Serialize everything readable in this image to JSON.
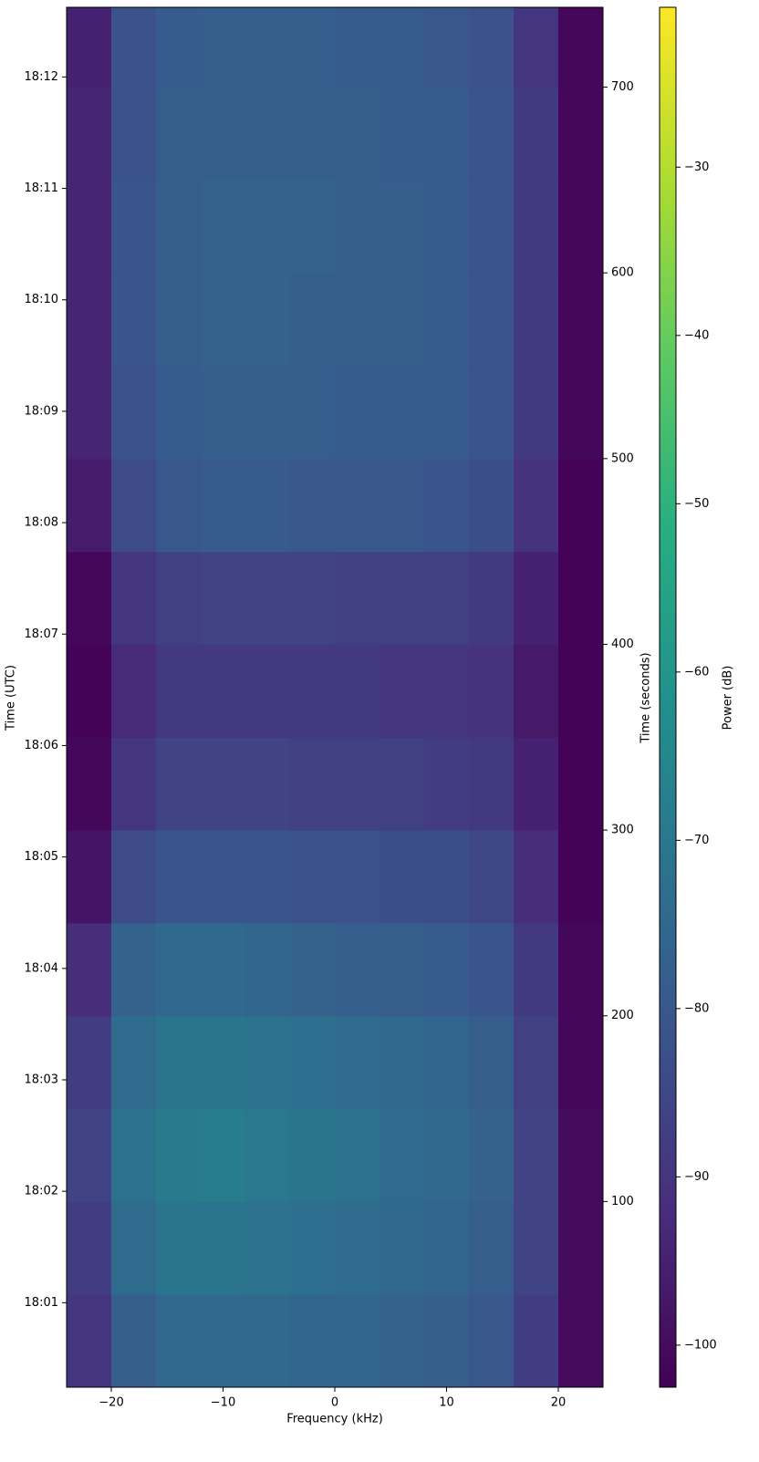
{
  "chart_data": {
    "type": "heatmap",
    "x_label": "Frequency (kHz)",
    "y_label": "Time (UTC)",
    "y2_label": "Time (seconds)",
    "colorbar_label": "Power (dB)",
    "colormap": "viridis",
    "x": [
      -24,
      -20,
      -16,
      -12,
      -8,
      -4,
      0,
      4,
      8,
      12,
      16,
      20,
      24
    ],
    "y": [
      0,
      50,
      100,
      150,
      200,
      250,
      300,
      350,
      400,
      450,
      500,
      550,
      600,
      650,
      700,
      743
    ],
    "values": [
      [
        -90,
        -78,
        -75,
        -75,
        -75,
        -76,
        -76,
        -77,
        -78,
        -80,
        -88,
        -100
      ],
      [
        -88,
        -74,
        -71,
        -71,
        -72,
        -73,
        -74,
        -75,
        -76,
        -78,
        -86,
        -100
      ],
      [
        -86,
        -72,
        -69,
        -68,
        -70,
        -71,
        -72,
        -74,
        -75,
        -77,
        -86,
        -100
      ],
      [
        -88,
        -74,
        -71,
        -71,
        -72,
        -73,
        -74,
        -75,
        -76,
        -78,
        -87,
        -101
      ],
      [
        -92,
        -77,
        -75,
        -75,
        -76,
        -77,
        -78,
        -78,
        -79,
        -81,
        -89,
        -101
      ],
      [
        -98,
        -84,
        -81,
        -81,
        -81,
        -82,
        -82,
        -83,
        -83,
        -85,
        -92,
        -102
      ],
      [
        -101,
        -90,
        -86,
        -86,
        -86,
        -87,
        -87,
        -87,
        -88,
        -89,
        -95,
        -102
      ],
      [
        -102,
        -93,
        -89,
        -89,
        -89,
        -89,
        -89,
        -90,
        -90,
        -91,
        -97,
        -102
      ],
      [
        -101,
        -90,
        -87,
        -86,
        -86,
        -86,
        -87,
        -87,
        -87,
        -89,
        -95,
        -102
      ],
      [
        -96,
        -84,
        -80,
        -79,
        -79,
        -80,
        -80,
        -80,
        -81,
        -83,
        -91,
        -102
      ],
      [
        -94,
        -82,
        -79,
        -78,
        -78,
        -78,
        -79,
        -79,
        -79,
        -81,
        -89,
        -101
      ],
      [
        -94,
        -81,
        -78,
        -77,
        -77,
        -78,
        -78,
        -78,
        -79,
        -81,
        -89,
        -101
      ],
      [
        -94,
        -81,
        -78,
        -77,
        -77,
        -77,
        -78,
        -78,
        -79,
        -81,
        -89,
        -101
      ],
      [
        -94,
        -82,
        -78,
        -78,
        -78,
        -78,
        -78,
        -79,
        -79,
        -81,
        -89,
        -101
      ],
      [
        -95,
        -82,
        -79,
        -78,
        -78,
        -78,
        -79,
        -79,
        -80,
        -82,
        -90,
        -101
      ]
    ],
    "xlim": [
      -24,
      24
    ],
    "xticks": [
      {
        "value": -20,
        "label": "−20"
      },
      {
        "value": -10,
        "label": "−10"
      },
      0,
      10,
      20
    ],
    "ylim": [
      0,
      743
    ],
    "yticks": [
      {
        "value": 45.5,
        "label": "18:01"
      },
      {
        "value": 105.5,
        "label": "18:02"
      },
      {
        "value": 165.5,
        "label": "18:03"
      },
      {
        "value": 225.5,
        "label": "18:04"
      },
      {
        "value": 285.5,
        "label": "18:05"
      },
      {
        "value": 345.5,
        "label": "18:06"
      },
      {
        "value": 405.5,
        "label": "18:07"
      },
      {
        "value": 465.5,
        "label": "18:08"
      },
      {
        "value": 525.5,
        "label": "18:09"
      },
      {
        "value": 585.5,
        "label": "18:10"
      },
      {
        "value": 645.5,
        "label": "18:11"
      },
      {
        "value": 705.5,
        "label": "18:12"
      }
    ],
    "y2lim": [
      0,
      743
    ],
    "y2ticks": [
      100,
      200,
      300,
      400,
      500,
      600,
      700
    ],
    "clim": [
      -102.5,
      -20.5
    ],
    "cticks": [
      {
        "value": -100,
        "label": "−100"
      },
      {
        "value": -90,
        "label": "−90"
      },
      {
        "value": -80,
        "label": "−80"
      },
      {
        "value": -70,
        "label": "−70"
      },
      {
        "value": -60,
        "label": "−60"
      },
      {
        "value": -50,
        "label": "−50"
      },
      {
        "value": -40,
        "label": "−40"
      },
      {
        "value": -30,
        "label": "−30"
      }
    ]
  }
}
